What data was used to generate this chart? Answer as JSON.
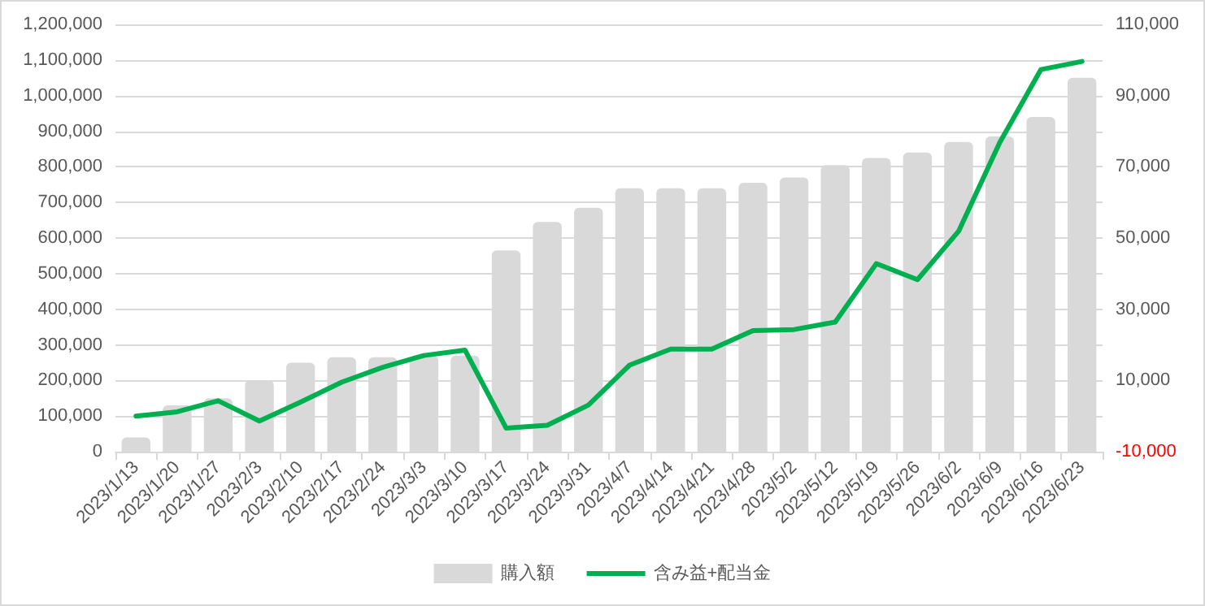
{
  "chart_data": {
    "type": "bar",
    "categories": [
      "2023/1/13",
      "2023/1/20",
      "2023/1/27",
      "2023/2/3",
      "2023/2/10",
      "2023/2/17",
      "2023/2/24",
      "2023/3/3",
      "2023/3/10",
      "2023/3/17",
      "2023/3/24",
      "2023/3/31",
      "2023/4/7",
      "2023/4/14",
      "2023/4/21",
      "2023/4/28",
      "2023/5/2",
      "2023/5/12",
      "2023/5/19",
      "2023/5/26",
      "2023/6/2",
      "2023/6/9",
      "2023/6/16",
      "2023/6/23"
    ],
    "series": [
      {
        "name": "購入額",
        "color": "#d9d9d9",
        "values": [
          40000,
          130000,
          150000,
          200000,
          250000,
          265000,
          265000,
          270000,
          270000,
          565000,
          645000,
          685000,
          740000,
          740000,
          740000,
          755000,
          770000,
          805000,
          825000,
          840000,
          870000,
          885000,
          940000,
          1050000
        ]
      },
      {
        "name": "含み益+配当金",
        "type": "line",
        "axis": "y2",
        "color": "#00b050",
        "values": [
          0,
          1200,
          4300,
          -1400,
          3900,
          9500,
          13700,
          17000,
          18500,
          -3400,
          -2600,
          3100,
          14300,
          18800,
          18800,
          24000,
          24300,
          26400,
          42800,
          38300,
          51900,
          76800,
          97300,
          99600
        ]
      }
    ],
    "ylim": [
      0,
      1200000
    ],
    "yticks": [
      0,
      {
        "value": 100000,
        "label": "100,000"
      },
      {
        "value": 200000,
        "label": "200,000"
      },
      {
        "value": 300000,
        "label": "300,000"
      },
      {
        "value": 400000,
        "label": "400,000"
      },
      {
        "value": 500000,
        "label": "500,000"
      },
      {
        "value": 600000,
        "label": "600,000"
      },
      {
        "value": 700000,
        "label": "700,000"
      },
      {
        "value": 800000,
        "label": "800,000"
      },
      {
        "value": 900000,
        "label": "900,000"
      },
      {
        "value": 1000000,
        "label": "1,000,000"
      },
      {
        "value": 1100000,
        "label": "1,100,000"
      },
      {
        "value": 1200000,
        "label": "1,200,000"
      }
    ],
    "y2lim": [
      -10000,
      110000
    ],
    "y2ticks": [
      {
        "value": -10000,
        "label": "-10,000"
      },
      {
        "value": 10000,
        "label": "10,000"
      },
      {
        "value": 30000,
        "label": "30,000"
      },
      {
        "value": 50000,
        "label": "50,000"
      },
      {
        "value": 70000,
        "label": "70,000"
      },
      {
        "value": 90000,
        "label": "90,000"
      },
      {
        "value": 110000,
        "label": "110,000"
      }
    ],
    "grid": "y",
    "legend": "bottom",
    "marker": "none",
    "line_style": "solid"
  }
}
